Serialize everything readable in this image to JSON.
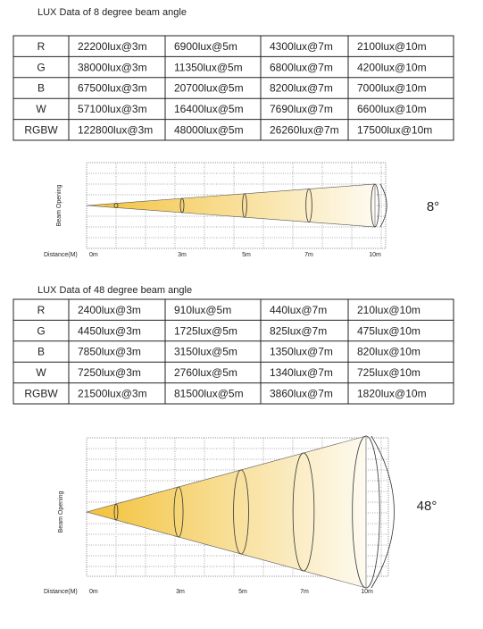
{
  "sections": [
    {
      "title": "LUX Data of 8 degree beam angle",
      "table": {
        "rows": [
          [
            "R",
            "22200lux@3m",
            "6900lux@5m",
            "4300lux@7m",
            "2100lux@10m"
          ],
          [
            "G",
            "38000lux@3m",
            "11350lux@5m",
            "6800lux@7m",
            "4200lux@10m"
          ],
          [
            "B",
            "67500lux@3m",
            "20700lux@5m",
            "8200lux@7m",
            "7000lux@10m"
          ],
          [
            "W",
            "57100lux@3m",
            "16400lux@5m",
            "7690lux@7m",
            "6600lux@10m"
          ],
          [
            "RGBW",
            "122800lux@3m",
            "48000lux@5m",
            "26260lux@7m",
            "17500lux@10m"
          ]
        ]
      },
      "diagram": {
        "y_label": "Beam Opening",
        "x_label": "Distance(M)",
        "distances": [
          "0m",
          "3m",
          "5m",
          "7m",
          "10m"
        ],
        "angle": "8°"
      }
    },
    {
      "title": "LUX Data of 48 degree beam angle",
      "table": {
        "rows": [
          [
            "R",
            "2400lux@3m",
            "910lux@5m",
            "440lux@7m",
            "210lux@10m"
          ],
          [
            "G",
            "4450lux@3m",
            "1725lux@5m",
            "825lux@7m",
            "475lux@10m"
          ],
          [
            "B",
            "7850lux@3m",
            "3150lux@5m",
            "1350lux@7m",
            "820lux@10m"
          ],
          [
            "W",
            "7250lux@3m",
            "2760lux@5m",
            "1340lux@7m",
            "725lux@10m"
          ],
          [
            "RGBW",
            "21500lux@3m",
            "81500lux@5m",
            "3860lux@7m",
            "1820lux@10m"
          ]
        ]
      },
      "diagram": {
        "y_label": "Beam Opening",
        "x_label": "Distance(M)",
        "distances": [
          "0m",
          "3m",
          "5m",
          "7m",
          "10m"
        ],
        "angle": "48°"
      }
    }
  ]
}
